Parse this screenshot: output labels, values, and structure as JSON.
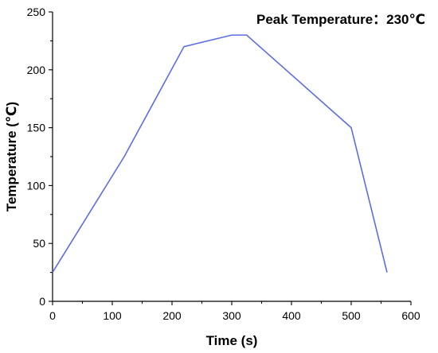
{
  "chart_data": {
    "type": "line",
    "title": "",
    "annotation": "Peak Temperature：230℃",
    "xlabel": "Time (s)",
    "ylabel": "Temperature (℃)",
    "xlim": [
      0,
      600
    ],
    "ylim": [
      0,
      250
    ],
    "xticks": [
      0,
      100,
      200,
      300,
      400,
      500,
      600
    ],
    "yticks": [
      0,
      50,
      100,
      150,
      200,
      250
    ],
    "grid": false,
    "legend": "none",
    "series": [
      {
        "color": "#5b6ee1",
        "x": [
          0,
          120,
          220,
          300,
          325,
          500,
          560
        ],
        "y": [
          25,
          125,
          220,
          230,
          230,
          150,
          25
        ]
      }
    ]
  }
}
